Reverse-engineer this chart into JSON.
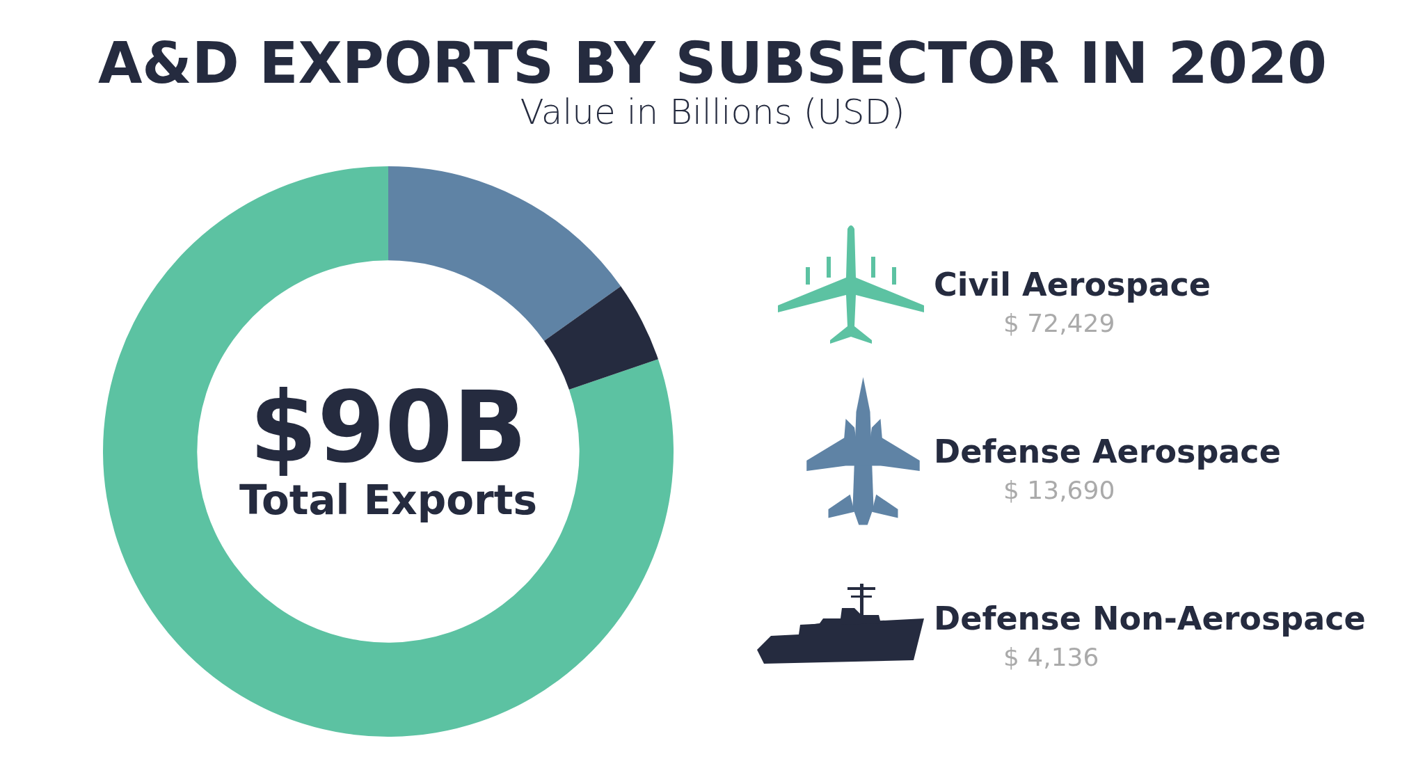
{
  "chart_data": {
    "type": "donut",
    "title": "A&D EXPORTS BY SUBSECTOR IN 2020",
    "subtitle": "Value in Billions (USD)",
    "categories": [
      "Civil Aerospace",
      "Defense Aerospace",
      "Defense Non-Aerospace"
    ],
    "values": [
      72429,
      13690,
      4136
    ],
    "value_labels": [
      "$ 72,429",
      "$ 13,690",
      "$ 4,136"
    ],
    "colors": [
      "#5cc2a2",
      "#5f83a5",
      "#252b3f"
    ],
    "annotations": [
      "$90B",
      "Total Exports"
    ],
    "legend": "right"
  }
}
